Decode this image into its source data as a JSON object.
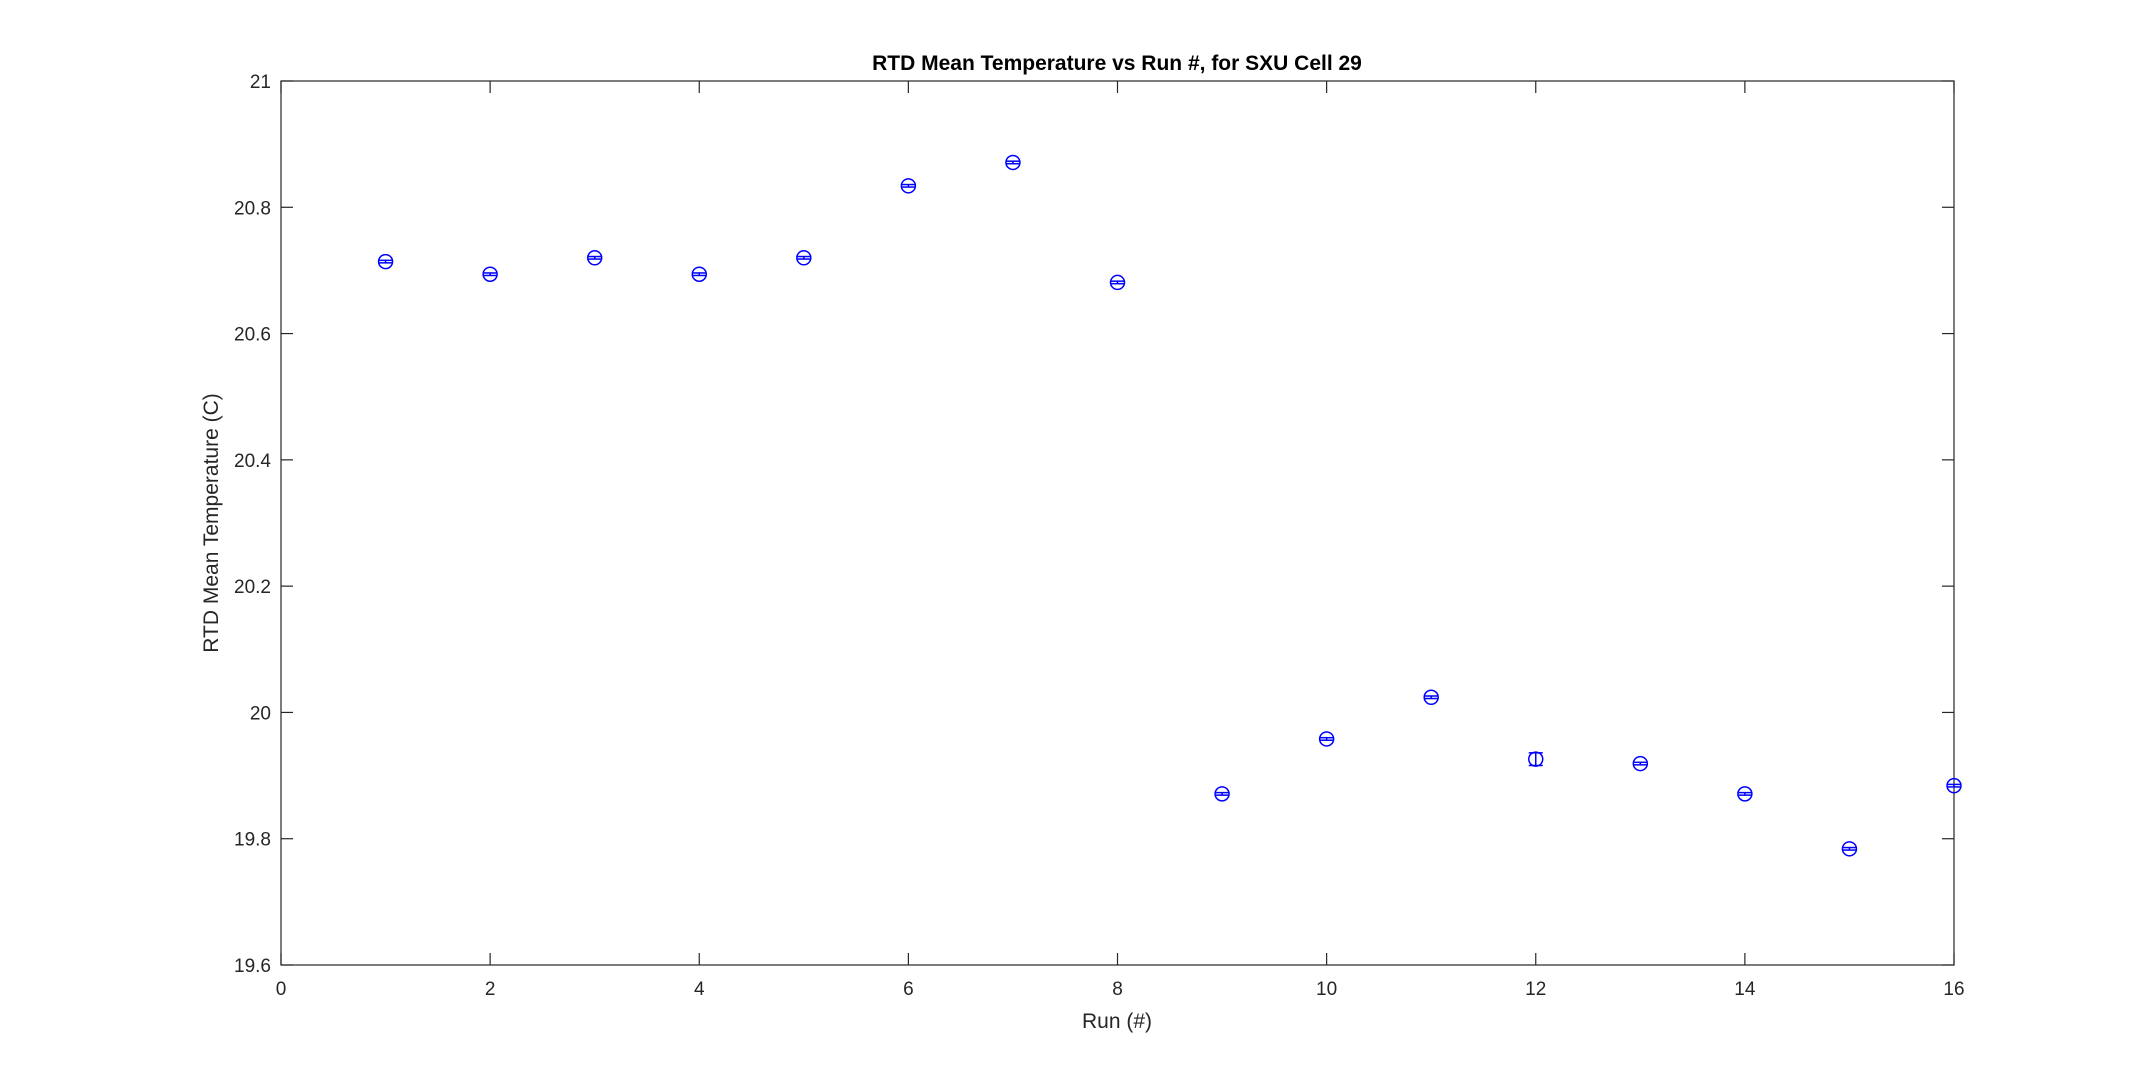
{
  "chart_data": {
    "type": "scatter",
    "title": "RTD Mean Temperature vs Run #, for SXU Cell 29",
    "xlabel": "Run (#)",
    "ylabel": "RTD Mean Temperature (C)",
    "xlim": [
      0,
      16
    ],
    "ylim": [
      19.6,
      21
    ],
    "xticks": [
      0,
      2,
      4,
      6,
      8,
      10,
      12,
      14,
      16
    ],
    "yticks": [
      19.6,
      19.8,
      20,
      20.2,
      20.4,
      20.6,
      20.8,
      21
    ],
    "xtick_labels": [
      "0",
      "2",
      "4",
      "6",
      "8",
      "10",
      "12",
      "14",
      "16"
    ],
    "ytick_labels": [
      "19.6",
      "19.8",
      "20",
      "20.2",
      "20.4",
      "20.6",
      "20.8",
      "21"
    ],
    "grid": false,
    "marker": "circle with error bars",
    "color": "#0000ff",
    "series": [
      {
        "x": [
          1,
          2,
          3,
          4,
          5,
          6,
          7,
          8,
          9,
          10,
          11,
          12,
          13,
          14,
          15,
          16
        ],
        "y": [
          20.714,
          20.694,
          20.72,
          20.694,
          20.72,
          20.834,
          20.871,
          20.681,
          19.871,
          19.958,
          20.024,
          19.926,
          19.919,
          19.871,
          19.784,
          19.884
        ],
        "error": [
          0.002,
          0.002,
          0.002,
          0.002,
          0.002,
          0.002,
          0.002,
          0.002,
          0.002,
          0.002,
          0.002,
          0.01,
          0.002,
          0.002,
          0.002,
          0.002
        ]
      }
    ]
  }
}
